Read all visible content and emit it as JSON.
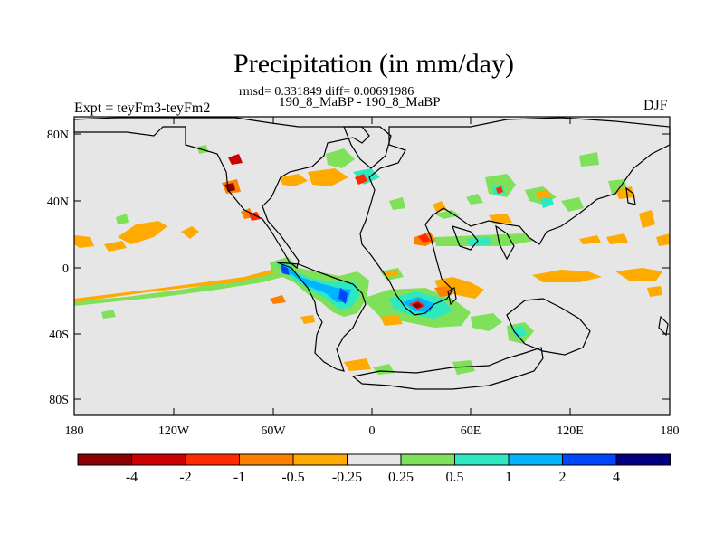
{
  "title": "Precipitation (in mm/day)",
  "stats": "rmsd= 0.331849 diff= 0.00691986",
  "subtitle": "190_8_MaBP - 190_8_MaBP",
  "expt": "Expt = teyFm3-teyFm2",
  "season": "DJF",
  "lat_labels": [
    "80N",
    "40N",
    "0",
    "40S",
    "80S"
  ],
  "lon_labels": [
    "180",
    "120W",
    "60W",
    "0",
    "60E",
    "120E",
    "180"
  ],
  "colorbar": {
    "colors": [
      "#8b0000",
      "#cc0000",
      "#ff2a00",
      "#ff7f00",
      "#ffaa00",
      "#e6e6e6",
      "#7fe05a",
      "#2ee8c0",
      "#00b4ff",
      "#0046ff",
      "#000080"
    ],
    "labels": [
      "-4",
      "-2",
      "-1",
      "-0.5",
      "-0.25",
      "0.25",
      "0.5",
      "1",
      "2",
      "4"
    ]
  },
  "colors": {
    "background_field": "#e6e6e6",
    "coastline": "#000000"
  }
}
